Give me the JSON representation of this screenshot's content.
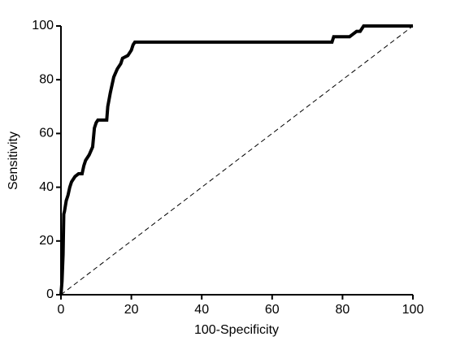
{
  "chart_data": {
    "type": "line",
    "x_label": "100-Specificity",
    "y_label": "Sensitivity",
    "xlim": [
      0,
      100
    ],
    "ylim": [
      0,
      100
    ],
    "xticks": [
      0,
      20,
      40,
      60,
      80,
      100
    ],
    "yticks": [
      0,
      20,
      40,
      60,
      80,
      100
    ],
    "grid": false,
    "series": [
      {
        "color": "#000000",
        "line_style": "solid",
        "x": [
          0,
          0.3,
          0.6,
          0.8,
          1,
          1.5,
          2,
          2.5,
          3,
          4,
          5,
          6,
          6.5,
          7,
          8,
          9,
          9.5,
          10,
          10.5,
          13,
          13.3,
          14,
          14.5,
          15,
          16,
          17,
          17.5,
          19,
          20,
          20.5,
          21,
          77,
          77.5,
          82,
          83,
          84,
          85,
          86,
          100
        ],
        "values": [
          0,
          5,
          15,
          30,
          31,
          35,
          37,
          40,
          42,
          44,
          45,
          45,
          48,
          50,
          52,
          55,
          62,
          64,
          65,
          65,
          70,
          75,
          78,
          81,
          84,
          86,
          88,
          89,
          91,
          93,
          94,
          94,
          96,
          96,
          97,
          98,
          98,
          100,
          100
        ]
      },
      {
        "color": "#000000",
        "line_style": "dashed",
        "x": [
          0,
          100
        ],
        "values": [
          0,
          100
        ]
      }
    ]
  }
}
